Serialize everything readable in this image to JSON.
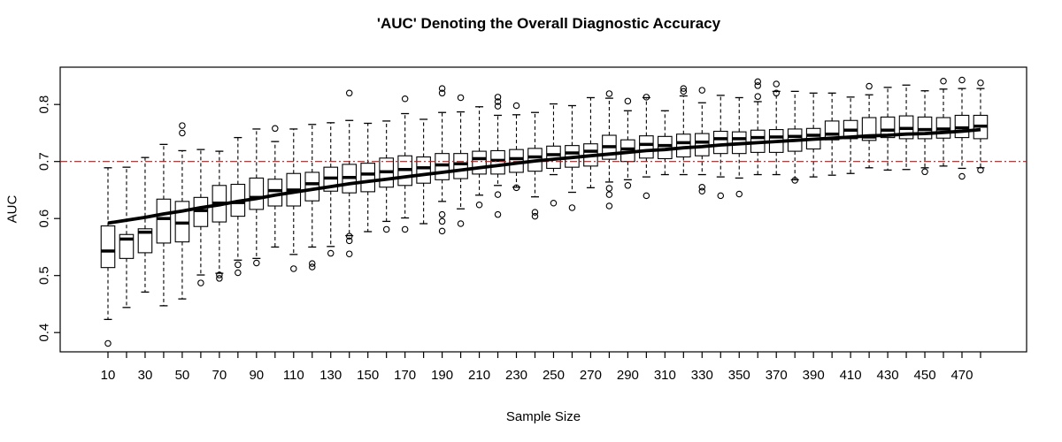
{
  "title": "'AUC' Denoting the Overall Diagnostic Accuracy",
  "colors": {
    "background": "#ffffff",
    "box_stroke": "#000000",
    "box_fill": "#ffffff",
    "median": "#000000",
    "trend_line": "#000000",
    "reference_line": "#c41414",
    "text": "#000000"
  },
  "chart_data": {
    "type": "boxplot",
    "title": "'AUC' Denoting the Overall Diagnostic Accuracy",
    "xlabel": "Sample Size",
    "ylabel": "AUC",
    "grid": false,
    "legend": null,
    "ylim": [
      0.366,
      0.866
    ],
    "y_ticks": [
      0.4,
      0.5,
      0.6,
      0.7,
      0.8
    ],
    "x_ticks_every": 10,
    "x_ticks_labeled": [
      10,
      30,
      50,
      70,
      90,
      110,
      130,
      150,
      170,
      190,
      210,
      230,
      250,
      270,
      290,
      310,
      330,
      350,
      370,
      390,
      410,
      430,
      450,
      470
    ],
    "reference_line": {
      "y": 0.7,
      "color": "#c41414",
      "style": "dotdash"
    },
    "trend_line": {
      "color": "#000000",
      "description": "thick smoothed fit through box medians",
      "y": [
        0.592,
        0.597,
        0.602,
        0.608,
        0.613,
        0.619,
        0.624,
        0.63,
        0.635,
        0.641,
        0.646,
        0.651,
        0.656,
        0.661,
        0.665,
        0.669,
        0.673,
        0.677,
        0.681,
        0.685,
        0.689,
        0.693,
        0.697,
        0.701,
        0.704,
        0.707,
        0.71,
        0.713,
        0.716,
        0.719,
        0.721,
        0.724,
        0.726,
        0.729,
        0.731,
        0.733,
        0.735,
        0.737,
        0.739,
        0.741,
        0.743,
        0.745,
        0.746,
        0.748,
        0.749,
        0.751,
        0.753,
        0.756
      ]
    },
    "boxes": [
      {
        "x": 10,
        "low": 0.423,
        "q1": 0.514,
        "median": 0.543,
        "q3": 0.587,
        "high": 0.689,
        "outliers": [
          0.381
        ]
      },
      {
        "x": 20,
        "low": 0.444,
        "q1": 0.53,
        "median": 0.564,
        "q3": 0.572,
        "high": 0.69,
        "outliers": []
      },
      {
        "x": 30,
        "low": 0.471,
        "q1": 0.54,
        "median": 0.576,
        "q3": 0.582,
        "high": 0.707,
        "outliers": []
      },
      {
        "x": 40,
        "low": 0.447,
        "q1": 0.557,
        "median": 0.6,
        "q3": 0.634,
        "high": 0.73,
        "outliers": []
      },
      {
        "x": 50,
        "low": 0.459,
        "q1": 0.559,
        "median": 0.592,
        "q3": 0.63,
        "high": 0.719,
        "outliers": [
          0.763,
          0.75
        ]
      },
      {
        "x": 60,
        "low": 0.501,
        "q1": 0.586,
        "median": 0.614,
        "q3": 0.637,
        "high": 0.721,
        "outliers": [
          0.487
        ]
      },
      {
        "x": 70,
        "low": 0.504,
        "q1": 0.594,
        "median": 0.627,
        "q3": 0.658,
        "high": 0.718,
        "outliers": [
          0.501,
          0.495
        ]
      },
      {
        "x": 80,
        "low": 0.527,
        "q1": 0.604,
        "median": 0.628,
        "q3": 0.66,
        "high": 0.742,
        "outliers": [
          0.519,
          0.505
        ]
      },
      {
        "x": 90,
        "low": 0.53,
        "q1": 0.616,
        "median": 0.637,
        "q3": 0.671,
        "high": 0.757,
        "outliers": [
          0.522
        ]
      },
      {
        "x": 100,
        "low": 0.55,
        "q1": 0.622,
        "median": 0.649,
        "q3": 0.669,
        "high": 0.735,
        "outliers": [
          0.758
        ]
      },
      {
        "x": 110,
        "low": 0.537,
        "q1": 0.622,
        "median": 0.65,
        "q3": 0.679,
        "high": 0.757,
        "outliers": [
          0.512
        ]
      },
      {
        "x": 120,
        "low": 0.55,
        "q1": 0.631,
        "median": 0.661,
        "q3": 0.681,
        "high": 0.765,
        "outliers": [
          0.521,
          0.515
        ]
      },
      {
        "x": 130,
        "low": 0.551,
        "q1": 0.648,
        "median": 0.671,
        "q3": 0.69,
        "high": 0.768,
        "outliers": [
          0.539
        ]
      },
      {
        "x": 140,
        "low": 0.57,
        "q1": 0.645,
        "median": 0.672,
        "q3": 0.695,
        "high": 0.772,
        "outliers": [
          0.82,
          0.569,
          0.561,
          0.538
        ]
      },
      {
        "x": 150,
        "low": 0.577,
        "q1": 0.647,
        "median": 0.678,
        "q3": 0.697,
        "high": 0.767,
        "outliers": []
      },
      {
        "x": 160,
        "low": 0.595,
        "q1": 0.655,
        "median": 0.682,
        "q3": 0.706,
        "high": 0.771,
        "outliers": [
          0.581
        ]
      },
      {
        "x": 170,
        "low": 0.601,
        "q1": 0.658,
        "median": 0.686,
        "q3": 0.71,
        "high": 0.784,
        "outliers": [
          0.81,
          0.581
        ]
      },
      {
        "x": 180,
        "low": 0.591,
        "q1": 0.662,
        "median": 0.689,
        "q3": 0.708,
        "high": 0.774,
        "outliers": []
      },
      {
        "x": 190,
        "low": 0.63,
        "q1": 0.668,
        "median": 0.694,
        "q3": 0.714,
        "high": 0.786,
        "outliers": [
          0.828,
          0.82,
          0.607,
          0.595,
          0.578
        ]
      },
      {
        "x": 200,
        "low": 0.617,
        "q1": 0.67,
        "median": 0.696,
        "q3": 0.714,
        "high": 0.787,
        "outliers": [
          0.812,
          0.591
        ]
      },
      {
        "x": 210,
        "low": 0.641,
        "q1": 0.678,
        "median": 0.705,
        "q3": 0.718,
        "high": 0.796,
        "outliers": [
          0.624
        ]
      },
      {
        "x": 220,
        "low": 0.658,
        "q1": 0.678,
        "median": 0.702,
        "q3": 0.719,
        "high": 0.781,
        "outliers": [
          0.813,
          0.805,
          0.797,
          0.642,
          0.607
        ]
      },
      {
        "x": 230,
        "low": 0.655,
        "q1": 0.681,
        "median": 0.705,
        "q3": 0.721,
        "high": 0.782,
        "outliers": [
          0.798,
          0.654
        ]
      },
      {
        "x": 240,
        "low": 0.638,
        "q1": 0.683,
        "median": 0.708,
        "q3": 0.723,
        "high": 0.786,
        "outliers": [
          0.611,
          0.604
        ]
      },
      {
        "x": 250,
        "low": 0.677,
        "q1": 0.688,
        "median": 0.712,
        "q3": 0.727,
        "high": 0.801,
        "outliers": [
          0.627
        ]
      },
      {
        "x": 260,
        "low": 0.646,
        "q1": 0.69,
        "median": 0.715,
        "q3": 0.728,
        "high": 0.798,
        "outliers": [
          0.619
        ]
      },
      {
        "x": 270,
        "low": 0.654,
        "q1": 0.692,
        "median": 0.718,
        "q3": 0.731,
        "high": 0.812,
        "outliers": []
      },
      {
        "x": 280,
        "low": 0.664,
        "q1": 0.704,
        "median": 0.726,
        "q3": 0.746,
        "high": 0.811,
        "outliers": [
          0.819,
          0.653,
          0.642,
          0.622
        ]
      },
      {
        "x": 290,
        "low": 0.668,
        "q1": 0.7,
        "median": 0.722,
        "q3": 0.738,
        "high": 0.789,
        "outliers": [
          0.806,
          0.658
        ]
      },
      {
        "x": 300,
        "low": 0.673,
        "q1": 0.706,
        "median": 0.73,
        "q3": 0.745,
        "high": 0.812,
        "outliers": [
          0.813,
          0.64
        ]
      },
      {
        "x": 310,
        "low": 0.677,
        "q1": 0.705,
        "median": 0.728,
        "q3": 0.744,
        "high": 0.789,
        "outliers": []
      },
      {
        "x": 320,
        "low": 0.677,
        "q1": 0.708,
        "median": 0.733,
        "q3": 0.748,
        "high": 0.815,
        "outliers": [
          0.828,
          0.823
        ]
      },
      {
        "x": 330,
        "low": 0.677,
        "q1": 0.71,
        "median": 0.734,
        "q3": 0.749,
        "high": 0.803,
        "outliers": [
          0.825,
          0.655,
          0.648
        ]
      },
      {
        "x": 340,
        "low": 0.673,
        "q1": 0.714,
        "median": 0.74,
        "q3": 0.753,
        "high": 0.816,
        "outliers": [
          0.64
        ]
      },
      {
        "x": 350,
        "low": 0.671,
        "q1": 0.714,
        "median": 0.74,
        "q3": 0.752,
        "high": 0.812,
        "outliers": [
          0.643
        ]
      },
      {
        "x": 360,
        "low": 0.677,
        "q1": 0.716,
        "median": 0.742,
        "q3": 0.755,
        "high": 0.805,
        "outliers": [
          0.84,
          0.833,
          0.814
        ]
      },
      {
        "x": 370,
        "low": 0.677,
        "q1": 0.716,
        "median": 0.743,
        "q3": 0.756,
        "high": 0.823,
        "outliers": [
          0.836,
          0.82
        ]
      },
      {
        "x": 380,
        "low": 0.668,
        "q1": 0.718,
        "median": 0.744,
        "q3": 0.757,
        "high": 0.823,
        "outliers": [
          0.667
        ]
      },
      {
        "x": 390,
        "low": 0.673,
        "q1": 0.722,
        "median": 0.746,
        "q3": 0.758,
        "high": 0.82,
        "outliers": []
      },
      {
        "x": 400,
        "low": 0.676,
        "q1": 0.738,
        "median": 0.748,
        "q3": 0.771,
        "high": 0.82,
        "outliers": []
      },
      {
        "x": 410,
        "low": 0.679,
        "q1": 0.74,
        "median": 0.755,
        "q3": 0.772,
        "high": 0.813,
        "outliers": []
      },
      {
        "x": 420,
        "low": 0.689,
        "q1": 0.737,
        "median": 0.743,
        "q3": 0.777,
        "high": 0.817,
        "outliers": [
          0.832
        ]
      },
      {
        "x": 430,
        "low": 0.685,
        "q1": 0.742,
        "median": 0.755,
        "q3": 0.778,
        "high": 0.83,
        "outliers": []
      },
      {
        "x": 440,
        "low": 0.686,
        "q1": 0.74,
        "median": 0.758,
        "q3": 0.78,
        "high": 0.834,
        "outliers": []
      },
      {
        "x": 450,
        "low": 0.689,
        "q1": 0.74,
        "median": 0.756,
        "q3": 0.778,
        "high": 0.824,
        "outliers": [
          0.682
        ]
      },
      {
        "x": 460,
        "low": 0.692,
        "q1": 0.741,
        "median": 0.757,
        "q3": 0.777,
        "high": 0.827,
        "outliers": [
          0.841
        ]
      },
      {
        "x": 470,
        "low": 0.688,
        "q1": 0.742,
        "median": 0.759,
        "q3": 0.781,
        "high": 0.828,
        "outliers": [
          0.843,
          0.674
        ]
      },
      {
        "x": 480,
        "low": 0.689,
        "q1": 0.74,
        "median": 0.762,
        "q3": 0.781,
        "high": 0.828,
        "outliers": [
          0.838,
          0.685
        ]
      }
    ]
  }
}
